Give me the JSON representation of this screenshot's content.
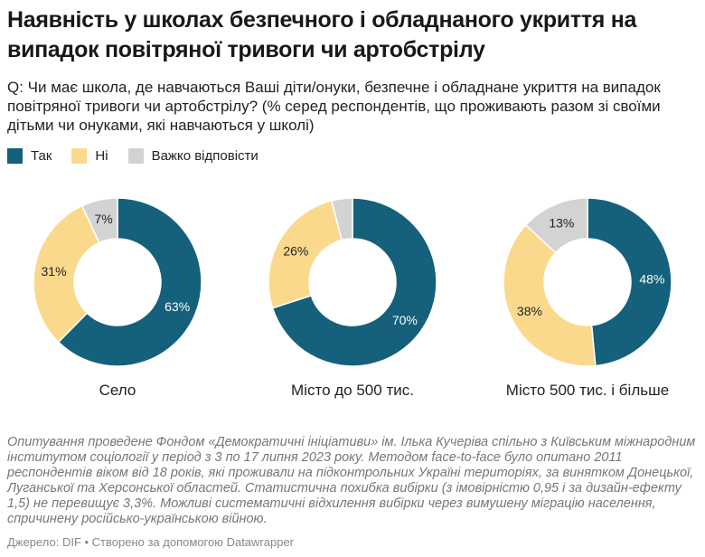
{
  "title": "Наявність у школах безпечного і обладнаного укриття на випадок повітряної тривоги чи артобстрілу",
  "subtitle": "Q: Чи має школа, де навчаються Ваші діти/онуки, безпечне і обладнане укриття на випадок повітряної тривоги чи артобстрілу? (% серед респондентів, що проживають разом зі своїми дітьми чи онуками, які навчаються у школі)",
  "legend": [
    {
      "label": "Так",
      "color": "#15607a"
    },
    {
      "label": "Ні",
      "color": "#fad98c"
    },
    {
      "label": "Важко відповісти",
      "color": "#d3d3d3"
    }
  ],
  "chart_data": {
    "type": "pie",
    "variant": "donut",
    "legend_position": "top-left",
    "series_names": [
      "Так",
      "Ні",
      "Важко відповісти"
    ],
    "colors": [
      "#15607a",
      "#fad98c",
      "#d3d3d3"
    ],
    "charts": [
      {
        "category": "Село",
        "values": [
          63,
          31,
          7
        ],
        "labels": [
          "63%",
          "31%",
          "7%"
        ]
      },
      {
        "category": "Місто до 500 тис.",
        "values": [
          70,
          26,
          4
        ],
        "labels": [
          "70%",
          "26%",
          ""
        ]
      },
      {
        "category": "Місто 500 тис. і більше",
        "values": [
          48,
          38,
          13
        ],
        "labels": [
          "48%",
          "38%",
          "13%"
        ]
      }
    ]
  },
  "notes": "Опитування проведене Фондом «Демократичні ініціативи» ім. Ілька Кучеріва спільно з Київським міжнародним інститутом соціології у період з 3 по 17 липня 2023 року. Методом face-to-face було опитано 2011 респондентів віком від 18 років, які проживали на підконтрольних Україні територіях, за винятком Донецької, Луганської та Херсонської областей. Статистична похибка вибірки (з імовірністю 0,95 і за дизайн-ефекту 1,5) не перевищує 3,3%. Можливі систематичні відхилення вибірки через вимушену міграцію населення, спричинену російсько-українською війною.",
  "source": "Джерело: DIF • Створено за допомогою Datawrapper"
}
